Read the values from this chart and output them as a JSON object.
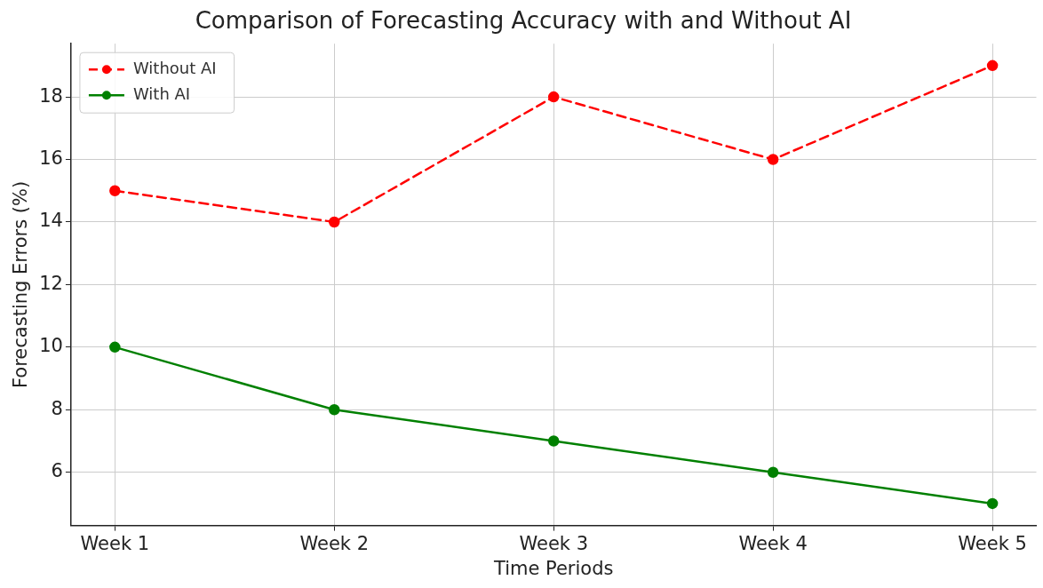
{
  "chart_data": {
    "type": "line",
    "title": "Comparison of Forecasting Accuracy with and Without AI",
    "xlabel": "Time Periods",
    "ylabel": "Forecasting Errors (%)",
    "categories": [
      "Week 1",
      "Week 2",
      "Week 3",
      "Week 4",
      "Week 5"
    ],
    "series": [
      {
        "name": "Without AI",
        "color": "#ff0000",
        "values": [
          15,
          14,
          18,
          16,
          19
        ],
        "line_style": "dashed"
      },
      {
        "name": "With AI",
        "color": "#008000",
        "values": [
          10,
          8,
          7,
          6,
          5
        ],
        "line_style": "solid"
      }
    ],
    "ylim": [
      4.3,
      19.7
    ],
    "yticks": [
      6,
      8,
      10,
      12,
      14,
      16,
      18
    ],
    "grid": true,
    "legend": "top left",
    "marker": "circle"
  }
}
